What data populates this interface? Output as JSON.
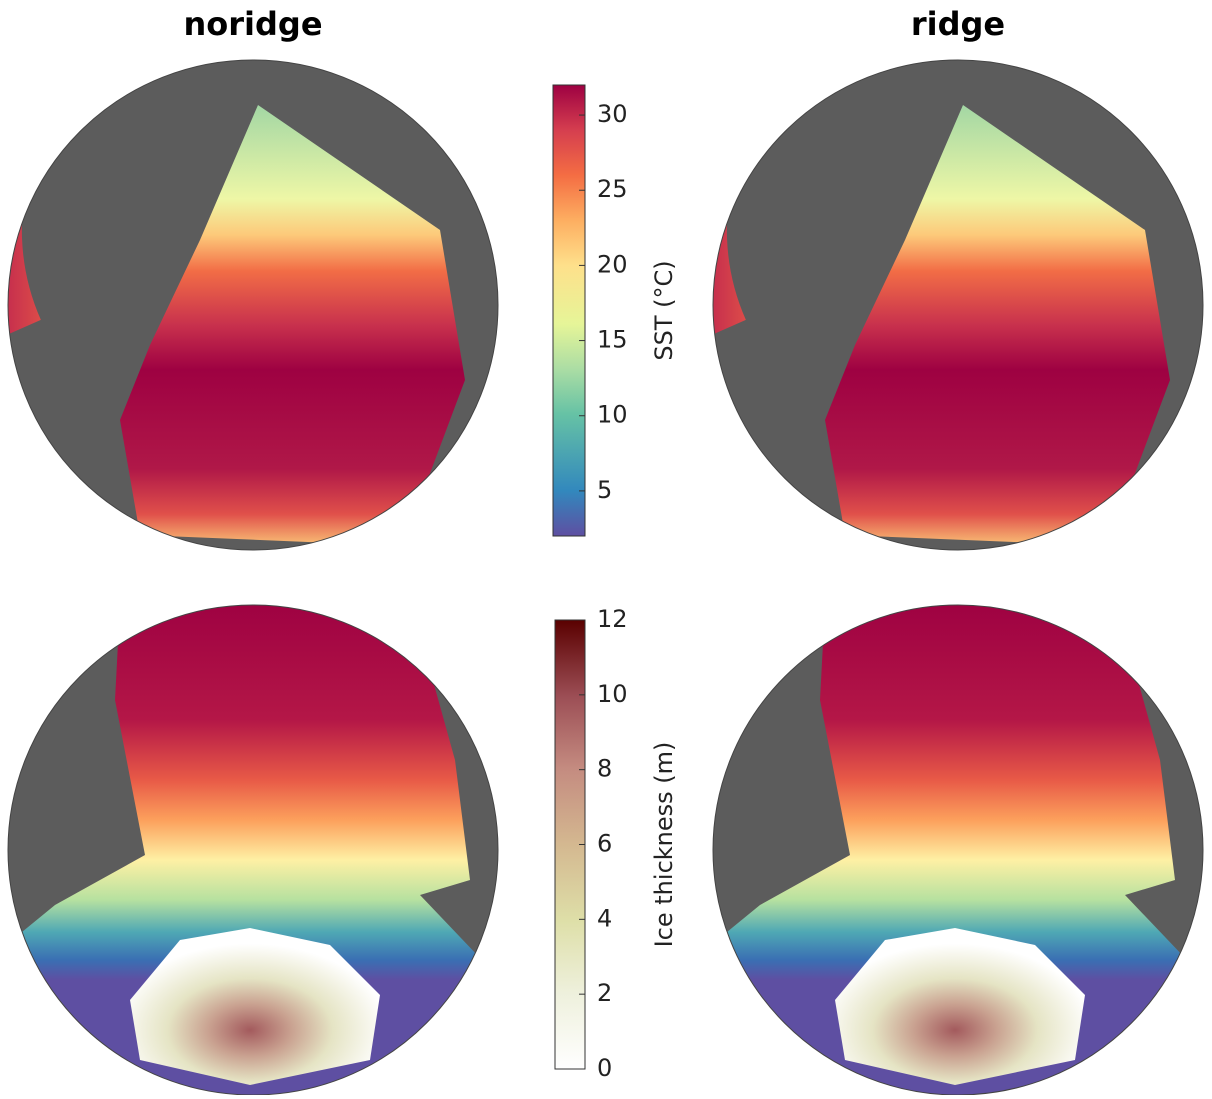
{
  "panels": [
    {
      "title": "noridge"
    },
    {
      "title": "ridge"
    }
  ],
  "colorbars": [
    {
      "label": "SST (°C)",
      "lim": [
        2,
        32
      ],
      "ticks": [
        5,
        10,
        15,
        20,
        25,
        30
      ]
    },
    {
      "label": "Ice thickness (m)",
      "lim": [
        0,
        12
      ],
      "ticks": [
        0,
        2,
        4,
        6,
        8,
        10,
        12
      ]
    }
  ]
}
